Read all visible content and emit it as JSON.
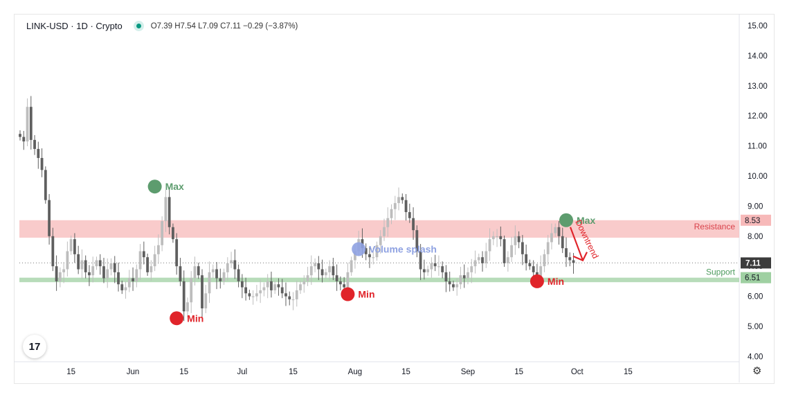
{
  "header": {
    "symbol": "LINK-USD · 1D · Crypto",
    "ohlc": "O7.39 H7.54 L7.09 C7.11 −0.29 (−3.87%)"
  },
  "icons": {
    "logo": "tradingview-logo",
    "settings": "gear-icon",
    "status": "live-dot-icon"
  },
  "colors": {
    "up": "#bdbdbd",
    "down": "#5f5f5f",
    "resistance": "#f7b9b9",
    "support": "#9fd0a2",
    "green_marker": "#5d9c6e",
    "red_marker": "#e0242a",
    "blue_marker": "#8fa2e2",
    "last_price_bg": "#3c3c3c"
  },
  "chart_data": {
    "type": "candlestick",
    "y_ticks": [
      "15.00",
      "14.00",
      "13.00",
      "12.00",
      "11.00",
      "10.00",
      "9.00",
      "8.00",
      "7.00",
      "6.00",
      "5.00",
      "4.00"
    ],
    "ylim": [
      4.0,
      15.0
    ],
    "x_ticks": [
      {
        "label": "15",
        "day": 15
      },
      {
        "label": "Jun",
        "day": 32
      },
      {
        "label": "15",
        "day": 46
      },
      {
        "label": "Jul",
        "day": 62
      },
      {
        "label": "15",
        "day": 76
      },
      {
        "label": "Aug",
        "day": 93
      },
      {
        "label": "15",
        "day": 107
      },
      {
        "label": "Sep",
        "day": 124
      },
      {
        "label": "15",
        "day": 138
      },
      {
        "label": "Oct",
        "day": 154
      },
      {
        "label": "15",
        "day": 168
      }
    ],
    "x_start_day": 1,
    "x_end_day": 175,
    "series_close": [
      11.3,
      11.15,
      12.3,
      11.2,
      10.9,
      10.6,
      10.2,
      9.2,
      8.0,
      7.0,
      6.5,
      6.8,
      6.9,
      7.5,
      7.9,
      7.4,
      6.9,
      7.2,
      6.8,
      6.7,
      7.0,
      7.2,
      7.0,
      6.6,
      6.9,
      7.1,
      6.8,
      6.4,
      6.2,
      6.3,
      6.6,
      6.5,
      6.9,
      7.5,
      7.3,
      6.8,
      7.0,
      7.4,
      7.7,
      8.5,
      9.3,
      8.3,
      7.9,
      7.0,
      6.5,
      5.5,
      5.8,
      6.6,
      7.0,
      6.7,
      5.6,
      6.1,
      6.8,
      6.9,
      6.6,
      6.5,
      6.8,
      7.1,
      7.2,
      6.9,
      6.5,
      6.3,
      6.1,
      6.0,
      6.0,
      6.1,
      6.2,
      6.3,
      6.5,
      6.2,
      6.4,
      6.3,
      6.1,
      6.0,
      5.9,
      5.9,
      6.2,
      6.4,
      6.5,
      6.7,
      7.0,
      7.1,
      6.9,
      6.7,
      6.8,
      7.0,
      6.7,
      6.5,
      6.4,
      6.3,
      6.8,
      7.2,
      7.5,
      7.9,
      7.6,
      7.4,
      7.3,
      7.3,
      7.7,
      8.0,
      8.3,
      8.6,
      8.9,
      9.1,
      9.3,
      9.2,
      8.8,
      8.6,
      8.2,
      7.5,
      6.9,
      6.8,
      6.9,
      7.1,
      7.0,
      7.0,
      6.8,
      6.5,
      6.4,
      6.3,
      6.4,
      6.7,
      6.6,
      6.8,
      7.0,
      7.2,
      7.3,
      7.1,
      7.5,
      7.9,
      8.0,
      8.0,
      7.9,
      7.1,
      7.3,
      7.7,
      8.0,
      7.8,
      7.4,
      7.1,
      7.0,
      6.8,
      6.6,
      7.0,
      7.4,
      7.8,
      8.1,
      8.3,
      8.0,
      7.6,
      7.3,
      7.2,
      7.11
    ],
    "annotations": {
      "markers": [
        {
          "label": "Max",
          "color": "green",
          "day": 38,
          "price": 9.65
        },
        {
          "label": "Min",
          "color": "red",
          "day": 44,
          "price": 5.27
        },
        {
          "label": "Min",
          "color": "red",
          "day": 91,
          "price": 6.07
        },
        {
          "label": "Volume splash",
          "color": "blue",
          "day": 94,
          "price": 7.57
        },
        {
          "label": "Min",
          "color": "red",
          "day": 143,
          "price": 6.5
        },
        {
          "label": "Max",
          "color": "green",
          "day": 151,
          "price": 8.53
        }
      ],
      "downtrend_label": "Downtrend",
      "zones": [
        {
          "label": "Resistance",
          "value": "8.53",
          "from": 7.95,
          "to": 8.53
        },
        {
          "label": "Support",
          "value": "6.51",
          "from": 6.47,
          "to": 6.62
        }
      ],
      "last_price": "7.11"
    }
  }
}
